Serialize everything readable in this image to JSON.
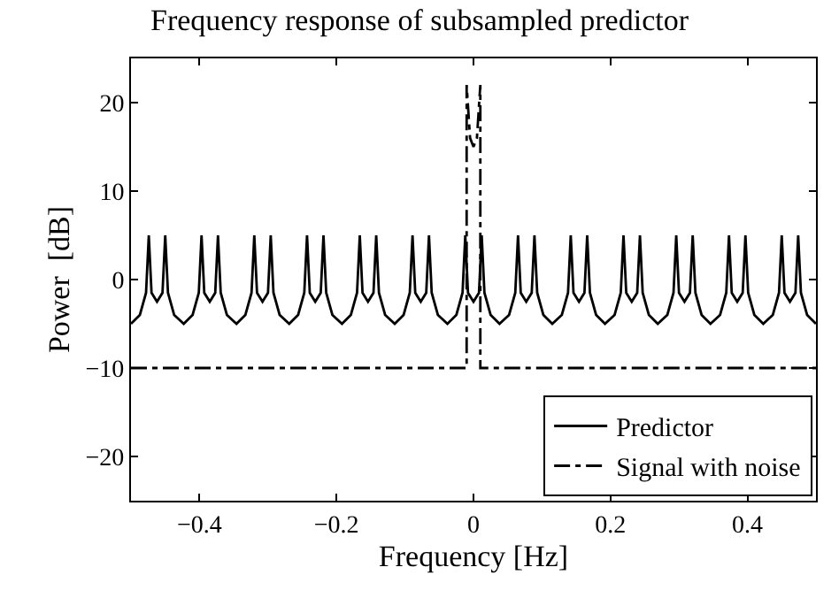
{
  "chart_data": {
    "type": "line",
    "title": "Frequency response of subsampled predictor",
    "xlabel": "Frequency [Hz]",
    "ylabel": "Power  [dB]",
    "xlim": [
      -0.5,
      0.5
    ],
    "xticks": [
      -0.4,
      -0.2,
      0,
      0.2,
      0.4
    ],
    "ylim": [
      -25,
      25
    ],
    "yticks": [
      -20,
      -10,
      0,
      10,
      20
    ],
    "legend": "bottom right",
    "marker": "none",
    "series": [
      {
        "name": "Predictor",
        "color": "#000000",
        "line_style": "solid",
        "x": [
          -0.5,
          -0.487,
          -0.478,
          -0.474,
          -0.47,
          -0.462,
          -0.454,
          -0.45,
          -0.446,
          -0.437,
          -0.423,
          -0.41,
          -0.401,
          -0.397,
          -0.393,
          -0.385,
          -0.377,
          -0.373,
          -0.369,
          -0.36,
          -0.346,
          -0.333,
          -0.324,
          -0.32,
          -0.316,
          -0.308,
          -0.3,
          -0.296,
          -0.292,
          -0.283,
          -0.269,
          -0.256,
          -0.247,
          -0.243,
          -0.239,
          -0.231,
          -0.223,
          -0.219,
          -0.215,
          -0.206,
          -0.192,
          -0.179,
          -0.17,
          -0.166,
          -0.162,
          -0.154,
          -0.146,
          -0.142,
          -0.138,
          -0.129,
          -0.115,
          -0.102,
          -0.093,
          -0.089,
          -0.085,
          -0.077,
          -0.069,
          -0.065,
          -0.061,
          -0.052,
          -0.038,
          -0.025,
          -0.016,
          -0.012,
          -0.008,
          0,
          0.008,
          0.012,
          0.016,
          0.025,
          0.038,
          0.052,
          0.061,
          0.065,
          0.069,
          0.077,
          0.085,
          0.089,
          0.093,
          0.102,
          0.115,
          0.129,
          0.138,
          0.142,
          0.146,
          0.154,
          0.162,
          0.166,
          0.17,
          0.179,
          0.192,
          0.206,
          0.215,
          0.219,
          0.223,
          0.231,
          0.239,
          0.243,
          0.247,
          0.256,
          0.269,
          0.283,
          0.292,
          0.296,
          0.3,
          0.308,
          0.316,
          0.32,
          0.324,
          0.333,
          0.346,
          0.36,
          0.369,
          0.373,
          0.377,
          0.385,
          0.393,
          0.397,
          0.401,
          0.41,
          0.423,
          0.437,
          0.446,
          0.45,
          0.454,
          0.462,
          0.47,
          0.474,
          0.478,
          0.487,
          0.5
        ],
        "values": [
          -5,
          -4,
          -1.5,
          5,
          -1.5,
          -2.5,
          -1.5,
          5,
          -1.5,
          -4,
          -5,
          -4,
          -1.5,
          5,
          -1.5,
          -2.5,
          -1.5,
          5,
          -1.5,
          -4,
          -5,
          -4,
          -1.5,
          5,
          -1.5,
          -2.5,
          -1.5,
          5,
          -1.5,
          -4,
          -5,
          -4,
          -1.5,
          5,
          -1.5,
          -2.5,
          -1.5,
          5,
          -1.5,
          -4,
          -5,
          -4,
          -1.5,
          5,
          -1.5,
          -2.5,
          -1.5,
          5,
          -1.5,
          -4,
          -5,
          -4,
          -1.5,
          5,
          -1.5,
          -2.5,
          -1.5,
          5,
          -1.5,
          -4,
          -5,
          -4,
          -1.5,
          5,
          -1.5,
          -2.5,
          -1.5,
          5,
          -1.5,
          -4,
          -5,
          -4,
          -1.5,
          5,
          -1.5,
          -2.5,
          -1.5,
          5,
          -1.5,
          -4,
          -5,
          -4,
          -1.5,
          5,
          -1.5,
          -2.5,
          -1.5,
          5,
          -1.5,
          -4,
          -5,
          -4,
          -1.5,
          5,
          -1.5,
          -2.5,
          -1.5,
          5,
          -1.5,
          -4,
          -5,
          -4,
          -1.5,
          5,
          -1.5,
          -2.5,
          -1.5,
          5,
          -1.5,
          -4,
          -5,
          -4,
          -1.5,
          5,
          -1.5,
          -2.5,
          -1.5,
          5,
          -1.5,
          -4,
          -5,
          -4,
          -1.5,
          5,
          -1.5,
          -2.5,
          -1.5,
          5,
          -1.5,
          -4,
          -5
        ]
      },
      {
        "name": "Signal with noise",
        "color": "#000000",
        "line_style": "dashdot",
        "x": [
          -0.5,
          -0.01,
          -0.01,
          -0.005,
          0,
          0.005,
          0.01,
          0.01,
          0.5
        ],
        "values": [
          -10,
          -10,
          22,
          16,
          15,
          16,
          22,
          -10,
          -10
        ]
      }
    ]
  }
}
